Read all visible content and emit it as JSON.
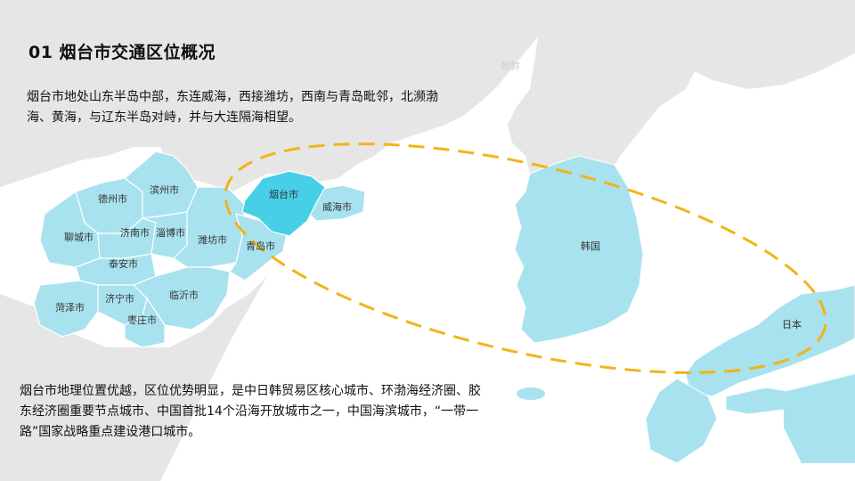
{
  "slide": {
    "title": "01 烟台市交通区位概况",
    "paragraph_1": "烟台市地处山东半岛中部，东连威海，西接潍坊，西南与青岛毗邻，北濒渤海、黄海，与辽东半岛对峙，并与大连隔海相望。",
    "paragraph_2": "烟台市地理位置优越，区位优势明显，是中日韩贸易区核心城市、环渤海经济圈、胶东经济圈重要节点城市、中国首批14个沿海开放城市之一，中国海滨城市，“一带一路”国家战略重点建设港口城市。"
  },
  "map": {
    "colors": {
      "sea": "#ffffff",
      "land_gray": "#e6e6e6",
      "region_light": "#a8e2ee",
      "highlight": "#47cfe8",
      "border": "#ffffff",
      "ellipse": "#f2b418"
    },
    "labels": {
      "dezhou": "德州市",
      "binzhou": "滨州市",
      "liaocheng": "聊城市",
      "jinan": "济南市",
      "zibo": "淄博市",
      "weifang": "潍坊市",
      "taian": "泰安市",
      "qingdao": "青岛市",
      "heze": "菏泽市",
      "jining": "济宁市",
      "linyi": "临沂市",
      "zaozhuang": "枣庄市",
      "yantai": "烟台市",
      "weihai": "威海市",
      "korea": "韩国",
      "japan": "日本",
      "north_korea_faint": "朝鲜"
    }
  }
}
